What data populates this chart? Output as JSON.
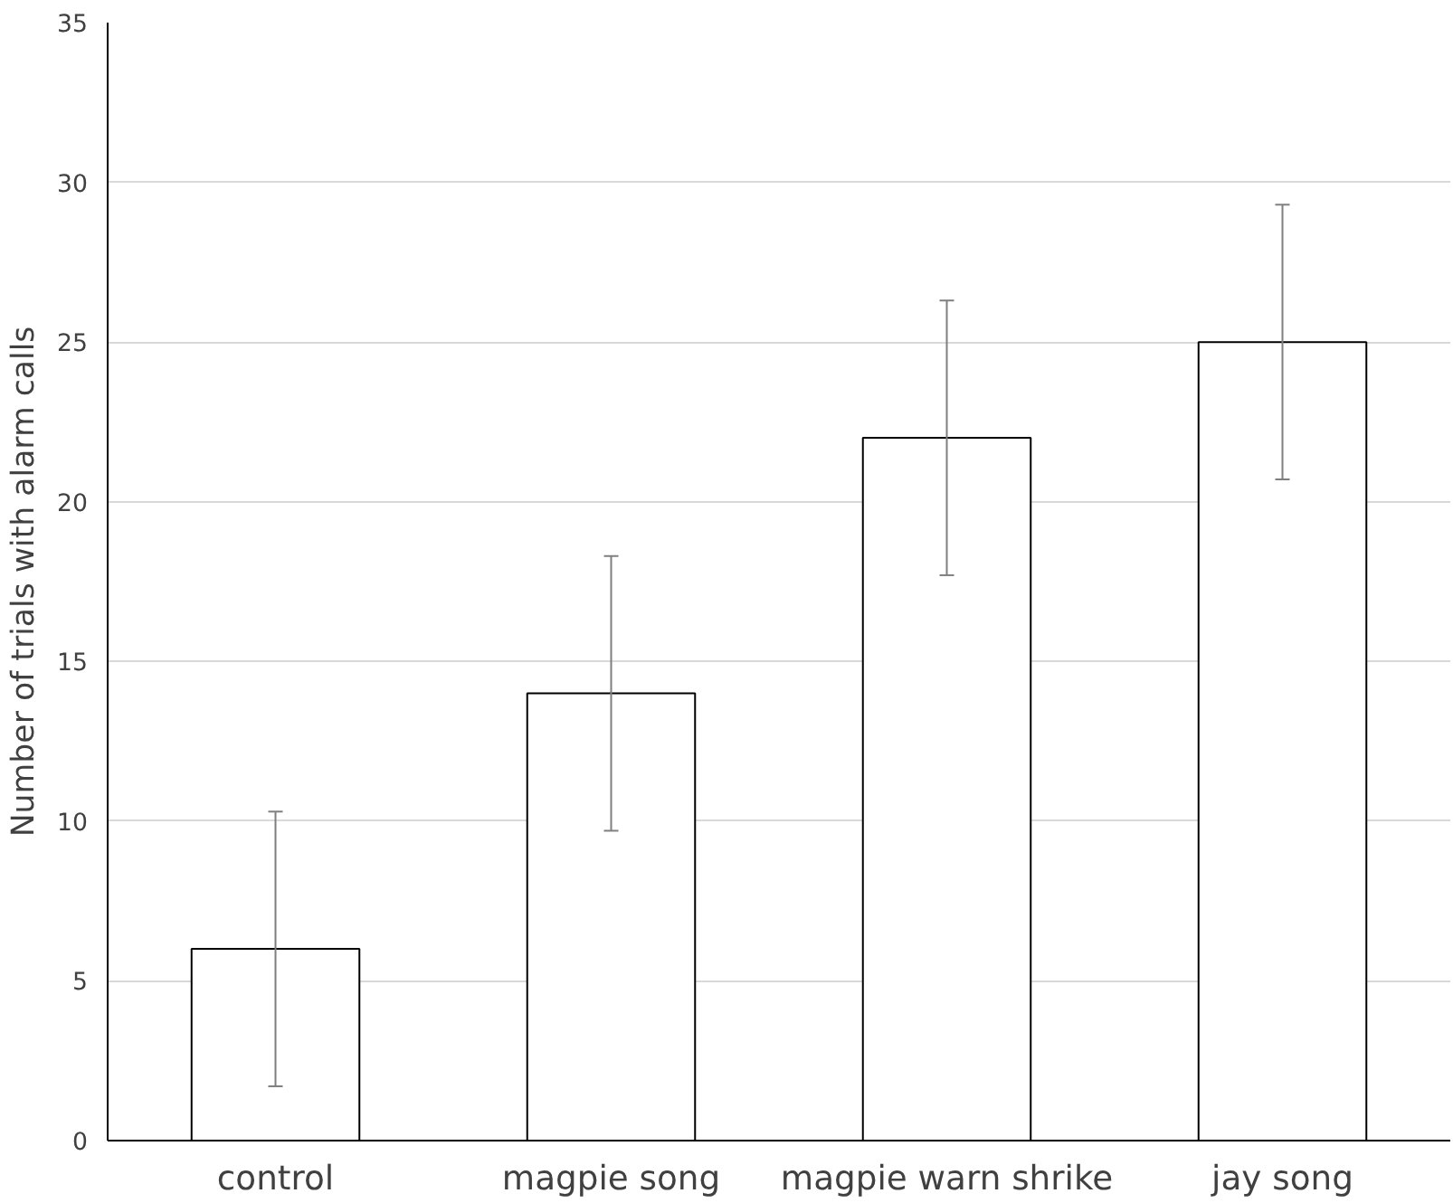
{
  "chart_data": {
    "type": "bar",
    "ylabel": "Number of trials with alarm calls",
    "categories": [
      "control",
      "magpie song",
      "magpie warn shrike",
      "jay song"
    ],
    "series": [
      {
        "color": "#ffffff",
        "values": [
          6,
          14,
          22,
          25
        ],
        "errors": [
          4.3,
          4.3,
          4.3,
          4.3
        ]
      }
    ],
    "ylim": [
      0,
      35
    ],
    "yticks": [
      0,
      5,
      10,
      15,
      20,
      25,
      30,
      35
    ],
    "grid": "y"
  }
}
